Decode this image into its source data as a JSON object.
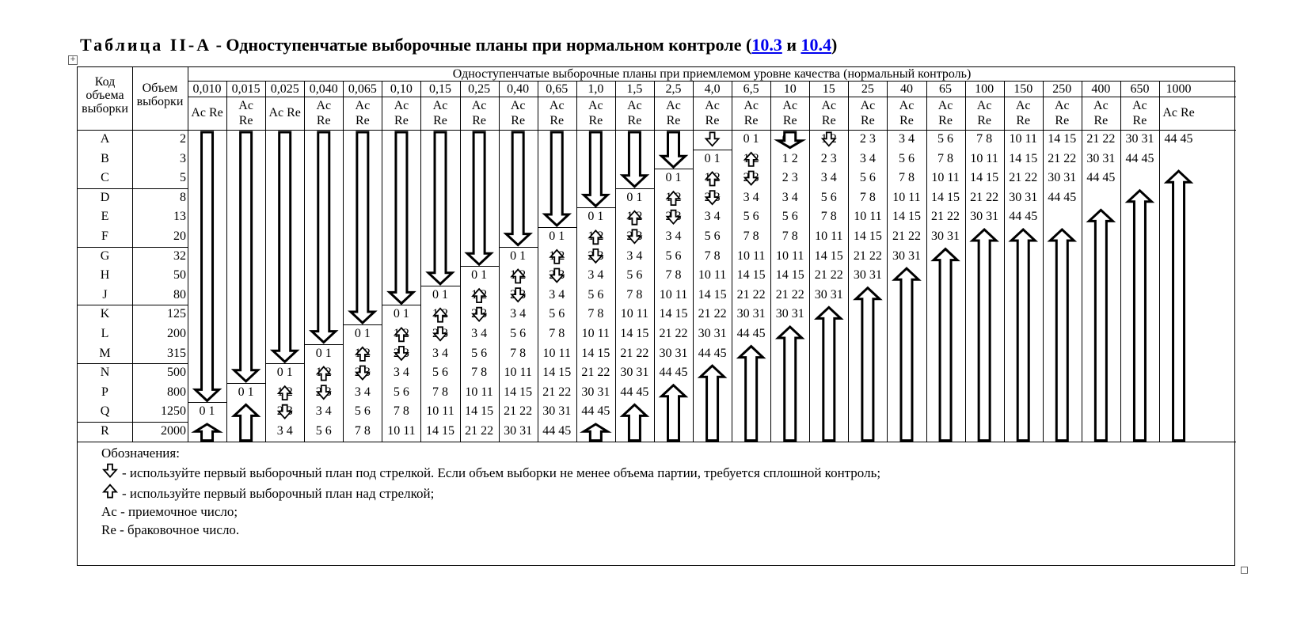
{
  "title": {
    "prefix": "Таблица II-A",
    "text": " - Одноступенчатые выборочные планы при нормальном контроле (",
    "link1": "10.3",
    "middle": " и ",
    "link2": "10.4",
    "suffix": ")"
  },
  "header": {
    "code": "Код объема выборки",
    "size": "Объем выборки",
    "group": "Одноступенчатые выборочные планы при приемлемом уровне качества (нормальный контроль)",
    "aql": [
      "0,010",
      "0,015",
      "0,025",
      "0,040",
      "0,065",
      "0,10",
      "0,15",
      "0,25",
      "0,40",
      "0,65",
      "1,0",
      "1,5",
      "2,5",
      "4,0",
      "6,5",
      "10",
      "15",
      "25",
      "40",
      "65",
      "100",
      "150",
      "250",
      "400",
      "650",
      "1000"
    ],
    "acre": "Ac Re"
  },
  "rows": [
    {
      "code": "A",
      "size": "2"
    },
    {
      "code": "B",
      "size": "3"
    },
    {
      "code": "C",
      "size": "5"
    },
    {
      "code": "D",
      "size": "8"
    },
    {
      "code": "E",
      "size": "13"
    },
    {
      "code": "F",
      "size": "20"
    },
    {
      "code": "G",
      "size": "32"
    },
    {
      "code": "H",
      "size": "50"
    },
    {
      "code": "J",
      "size": "80"
    },
    {
      "code": "K",
      "size": "125"
    },
    {
      "code": "L",
      "size": "200"
    },
    {
      "code": "M",
      "size": "315"
    },
    {
      "code": "N",
      "size": "500"
    },
    {
      "code": "P",
      "size": "800"
    },
    {
      "code": "Q",
      "size": "1250"
    },
    {
      "code": "R",
      "size": "2000"
    }
  ],
  "table": {
    "plans": [
      "0 1",
      "1 2",
      "2 3",
      "3 4",
      "5 6",
      "7 8",
      "10 11",
      "14 15",
      "21 22",
      "30 31",
      "44 45"
    ],
    "first_plan_row": [
      14,
      13,
      12,
      11,
      10,
      9,
      8,
      7,
      6,
      5,
      4,
      3,
      2,
      1,
      0,
      0,
      0,
      0,
      0,
      0,
      0,
      0,
      0,
      0,
      0,
      0
    ],
    "first_plan_index": [
      0,
      0,
      0,
      0,
      0,
      0,
      0,
      0,
      0,
      0,
      0,
      0,
      0,
      0,
      0,
      0,
      1,
      2,
      3,
      4,
      5,
      6,
      7,
      8,
      9,
      10
    ],
    "arrows_down": [
      {
        "col": 0,
        "rows": [
          0,
          13
        ]
      },
      {
        "col": 1,
        "rows": [
          0,
          12
        ]
      },
      {
        "col": 2,
        "rows": [
          0,
          11
        ]
      },
      {
        "col": 3,
        "rows": [
          0,
          10
        ]
      },
      {
        "col": 4,
        "rows": [
          0,
          9
        ]
      },
      {
        "col": 5,
        "rows": [
          0,
          8
        ]
      },
      {
        "col": 6,
        "rows": [
          0,
          7
        ]
      },
      {
        "col": 7,
        "rows": [
          0,
          6
        ]
      },
      {
        "col": 8,
        "rows": [
          0,
          5
        ]
      },
      {
        "col": 9,
        "rows": [
          0,
          4
        ]
      },
      {
        "col": 10,
        "rows": [
          0,
          3
        ]
      },
      {
        "col": 11,
        "rows": [
          0,
          2
        ]
      },
      {
        "col": 12,
        "rows": [
          0,
          1
        ]
      },
      {
        "col": 15,
        "rows": [
          0,
          0
        ]
      }
    ],
    "arrows_up": [
      {
        "col": 0,
        "rows": [
          15,
          15
        ]
      },
      {
        "col": 1,
        "rows": [
          14,
          15
        ]
      },
      {
        "col": 10,
        "rows": [
          15,
          15
        ]
      },
      {
        "col": 11,
        "rows": [
          14,
          15
        ]
      },
      {
        "col": 12,
        "rows": [
          13,
          15
        ]
      },
      {
        "col": 13,
        "rows": [
          12,
          15
        ]
      },
      {
        "col": 14,
        "rows": [
          11,
          15
        ]
      },
      {
        "col": 15,
        "rows": [
          10,
          15
        ]
      },
      {
        "col": 16,
        "rows": [
          9,
          15
        ]
      },
      {
        "col": 17,
        "rows": [
          8,
          15
        ]
      },
      {
        "col": 18,
        "rows": [
          7,
          15
        ]
      },
      {
        "col": 19,
        "rows": [
          6,
          15
        ]
      },
      {
        "col": 20,
        "rows": [
          5,
          15
        ]
      },
      {
        "col": 21,
        "rows": [
          5,
          15
        ]
      },
      {
        "col": 22,
        "rows": [
          5,
          15
        ]
      },
      {
        "col": 23,
        "rows": [
          4,
          15
        ]
      },
      {
        "col": 24,
        "rows": [
          3,
          15
        ]
      },
      {
        "col": 25,
        "rows": [
          2,
          15
        ]
      }
    ],
    "small_arrows": [
      {
        "col": 2,
        "row": 13,
        "dir": "up"
      },
      {
        "col": 2,
        "row": 14,
        "dir": "down"
      },
      {
        "col": 3,
        "row": 12,
        "dir": "up"
      },
      {
        "col": 3,
        "row": 13,
        "dir": "down"
      },
      {
        "col": 4,
        "row": 11,
        "dir": "up"
      },
      {
        "col": 4,
        "row": 12,
        "dir": "down"
      },
      {
        "col": 5,
        "row": 10,
        "dir": "up"
      },
      {
        "col": 5,
        "row": 11,
        "dir": "down"
      },
      {
        "col": 6,
        "row": 9,
        "dir": "up"
      },
      {
        "col": 6,
        "row": 10,
        "dir": "down"
      },
      {
        "col": 7,
        "row": 8,
        "dir": "up"
      },
      {
        "col": 7,
        "row": 9,
        "dir": "down"
      },
      {
        "col": 8,
        "row": 7,
        "dir": "up"
      },
      {
        "col": 8,
        "row": 8,
        "dir": "down"
      },
      {
        "col": 9,
        "row": 6,
        "dir": "up"
      },
      {
        "col": 9,
        "row": 7,
        "dir": "down"
      },
      {
        "col": 10,
        "row": 5,
        "dir": "up"
      },
      {
        "col": 10,
        "row": 6,
        "dir": "down"
      },
      {
        "col": 11,
        "row": 4,
        "dir": "up"
      },
      {
        "col": 11,
        "row": 5,
        "dir": "down"
      },
      {
        "col": 12,
        "row": 3,
        "dir": "up"
      },
      {
        "col": 12,
        "row": 4,
        "dir": "down"
      },
      {
        "col": 13,
        "row": 0,
        "dir": "down"
      },
      {
        "col": 13,
        "row": 2,
        "dir": "up"
      },
      {
        "col": 13,
        "row": 3,
        "dir": "down"
      },
      {
        "col": 14,
        "row": 1,
        "dir": "up"
      },
      {
        "col": 14,
        "row": 2,
        "dir": "down"
      },
      {
        "col": 16,
        "row": 0,
        "dir": "down"
      }
    ]
  },
  "legend": {
    "heading": "Обозначения:",
    "down": " - используйте первый выборочный план под стрелкой. Если объем выборки не менее объема партии, требуется сплошной контроль;",
    "up": " - используйте первый выборочный план над стрелкой;",
    "ac": "Ac - приемочное число;",
    "re": "Re - браковочное число."
  },
  "icons": {
    "table_handle": "move-handle-icon",
    "resize": "resize-handle-icon"
  }
}
